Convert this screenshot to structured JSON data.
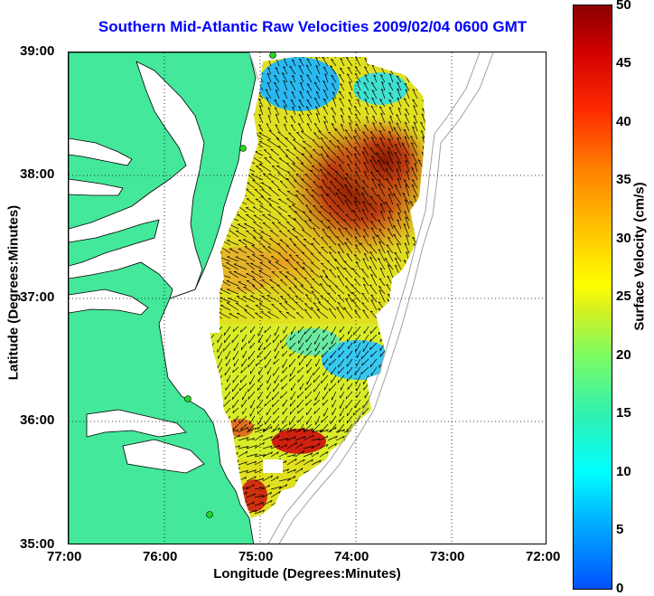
{
  "title": "Southern Mid-Atlantic Raw Velocities 2009/02/04 0600 GMT",
  "xlabel": "Longitude (Degrees:Minutes)",
  "ylabel": "Latitude (Degrees:Minutes)",
  "x_ticks": [
    "77:00",
    "76:00",
    "75:00",
    "74:00",
    "73:00",
    "72:00"
  ],
  "y_ticks": [
    "39:00",
    "38:00",
    "37:00",
    "36:00",
    "35:00"
  ],
  "colorbar": {
    "label": "Surface Velocity (cm/s)",
    "ticks": [
      "50",
      "45",
      "40",
      "35",
      "30",
      "25",
      "20",
      "15",
      "10",
      "5",
      "0"
    ]
  },
  "colors": {
    "land": "#44e89a",
    "title": "#0000ff",
    "arrows": "#000000",
    "coastline": "#000000",
    "bathymetry": "#a0a0a0",
    "stations": "#22d822"
  },
  "map": {
    "lon_range": [
      -77,
      -72
    ],
    "lat_range": [
      35,
      39
    ],
    "grid": "dotted",
    "vector_field": "surface current arrows over colored speed field"
  }
}
